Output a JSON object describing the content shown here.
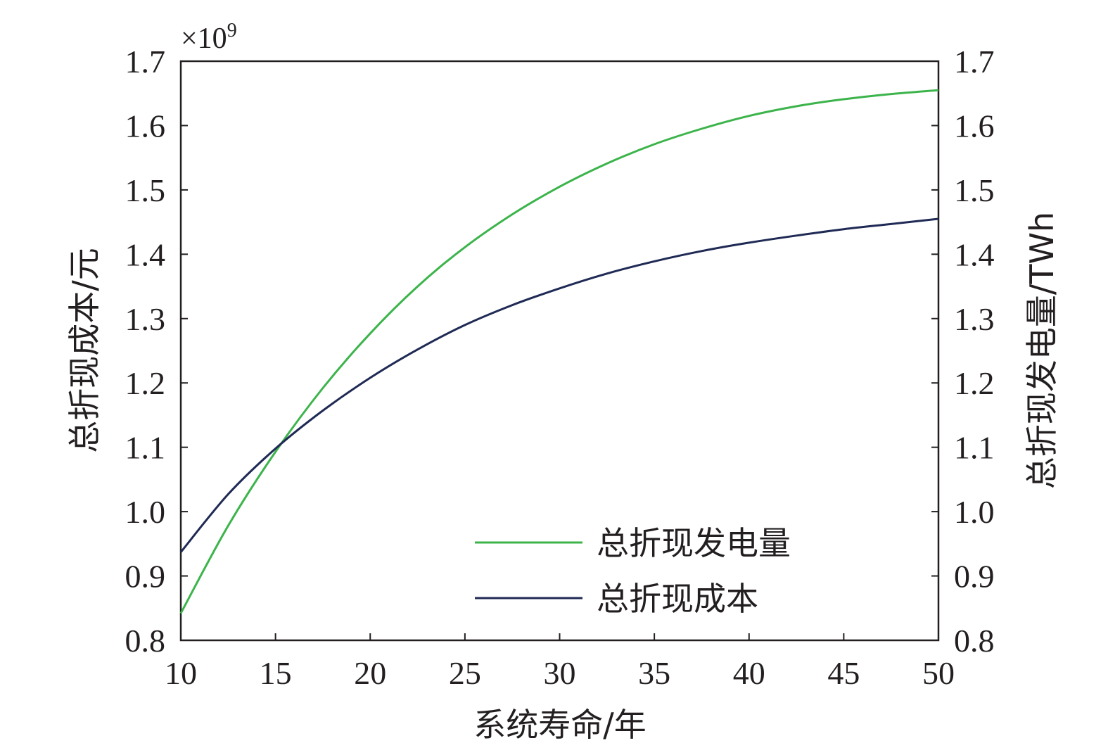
{
  "chart_data": {
    "type": "line",
    "xlabel": "系统寿命/年",
    "ylabel_left": "总折现成本/元",
    "ylabel_right": "总折现发电量/TWh",
    "y_multiplier": "×10",
    "y_multiplier_exp": "9",
    "xlim": [
      10,
      50
    ],
    "ylim": [
      0.8,
      1.7
    ],
    "x_ticks": [
      "10",
      "15",
      "20",
      "25",
      "30",
      "35",
      "40",
      "45",
      "50"
    ],
    "y_ticks": [
      "0.8",
      "0.9",
      "1.0",
      "1.1",
      "1.2",
      "1.3",
      "1.4",
      "1.5",
      "1.6",
      "1.7"
    ],
    "grid": false,
    "legend_position": "bottom-right",
    "series": [
      {
        "name": "总折现发电量",
        "color": "#3cb44b",
        "x": [
          10,
          12.5,
          15,
          17.5,
          20,
          22.5,
          25,
          27.5,
          30,
          32.5,
          35,
          37.5,
          40,
          42.5,
          45,
          47.5,
          50
        ],
        "y": [
          0.842,
          0.978,
          1.093,
          1.192,
          1.277,
          1.35,
          1.411,
          1.462,
          1.505,
          1.541,
          1.571,
          1.595,
          1.615,
          1.63,
          1.641,
          1.649,
          1.655
        ]
      },
      {
        "name": "总折现成本",
        "color": "#1f2a55",
        "x": [
          10,
          12.5,
          15,
          17.5,
          20,
          22.5,
          25,
          27.5,
          30,
          32.5,
          35,
          37.5,
          40,
          42.5,
          45,
          47.5,
          50
        ],
        "y": [
          0.937,
          1.027,
          1.098,
          1.157,
          1.208,
          1.252,
          1.29,
          1.321,
          1.347,
          1.37,
          1.389,
          1.405,
          1.418,
          1.429,
          1.439,
          1.447,
          1.455
        ]
      }
    ]
  }
}
